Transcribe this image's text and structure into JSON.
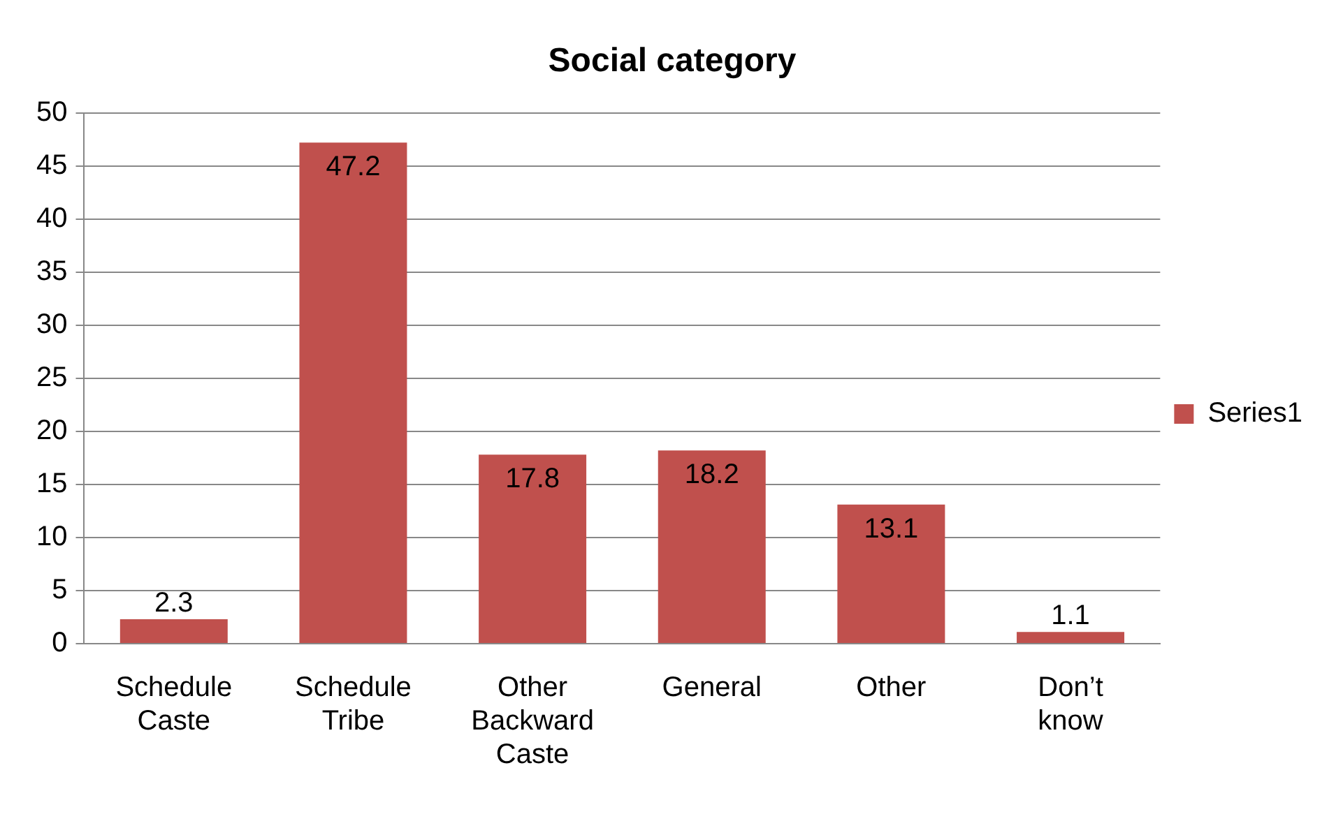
{
  "chart_data": {
    "type": "bar",
    "title": "Social category",
    "categories": [
      "Schedule Caste",
      "Schedule Tribe",
      "Other Backward Caste",
      "General",
      "Other",
      "Don’t know"
    ],
    "series": [
      {
        "name": "Series1",
        "color": "#c0504d",
        "values": [
          2.3,
          47.2,
          17.8,
          18.2,
          13.1,
          1.1
        ]
      }
    ],
    "ylim": [
      0,
      50
    ],
    "yticks": [
      0,
      5,
      10,
      15,
      20,
      25,
      30,
      35,
      40,
      45,
      50
    ],
    "grid": "y",
    "legend": "right",
    "data_labels": true
  }
}
